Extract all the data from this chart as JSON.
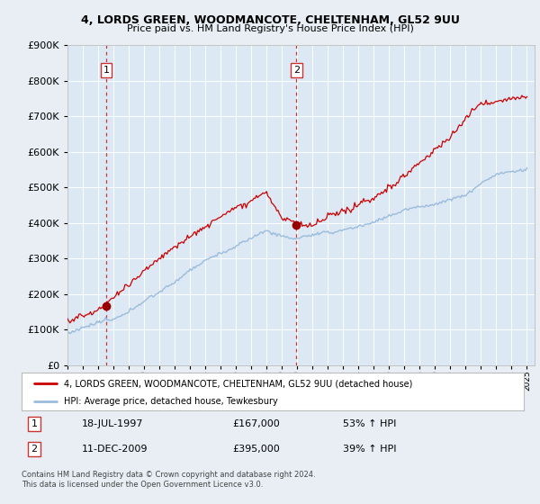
{
  "title1": "4, LORDS GREEN, WOODMANCOTE, CHELTENHAM, GL52 9UU",
  "title2": "Price paid vs. HM Land Registry's House Price Index (HPI)",
  "legend_line1": "4, LORDS GREEN, WOODMANCOTE, CHELTENHAM, GL52 9UU (detached house)",
  "legend_line2": "HPI: Average price, detached house, Tewkesbury",
  "footer1": "Contains HM Land Registry data © Crown copyright and database right 2024.",
  "footer2": "This data is licensed under the Open Government Licence v3.0.",
  "sale1_label": "1",
  "sale1_date": "18-JUL-1997",
  "sale1_price": "£167,000",
  "sale1_hpi": "53% ↑ HPI",
  "sale2_label": "2",
  "sale2_date": "11-DEC-2009",
  "sale2_price": "£395,000",
  "sale2_hpi": "39% ↑ HPI",
  "sale1_year": 1997.54,
  "sale1_value": 167000,
  "sale2_year": 2009.95,
  "sale2_value": 395000,
  "hpi_color": "#9bbcdb",
  "price_color": "#cc0000",
  "sale_dot_color": "#990000",
  "vline_color": "#cc3333",
  "bg_color": "#e8eef4",
  "plot_bg": "#dce8f4",
  "grid_color": "#ffffff",
  "ylim_min": 0,
  "ylim_max": 900000,
  "ytick_step": 100000,
  "xmin": 1995.0,
  "xmax": 2025.5
}
